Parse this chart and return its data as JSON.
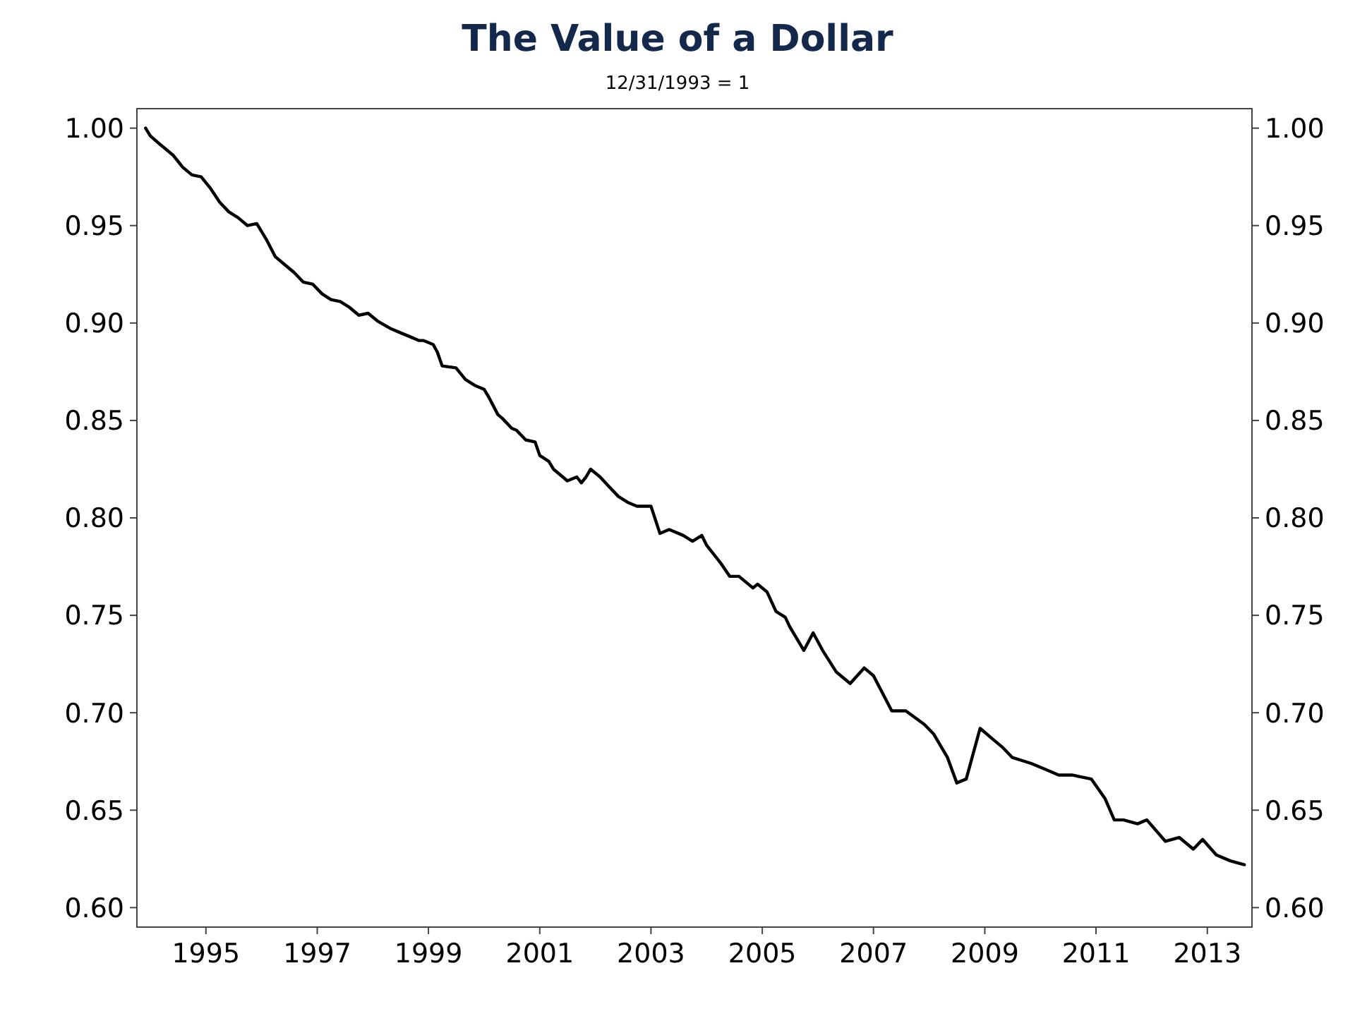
{
  "chart_data": {
    "type": "line",
    "title": "The Value of a Dollar",
    "subtitle": "12/31/1993 = 1",
    "x": [
      "1993-12",
      "1994-01",
      "1994-03",
      "1994-04",
      "1994-06",
      "1994-08",
      "1994-10",
      "1994-12",
      "1995-02",
      "1995-04",
      "1995-06",
      "1995-08",
      "1995-10",
      "1995-12",
      "1996-02",
      "1996-04",
      "1996-06",
      "1996-08",
      "1996-10",
      "1996-12",
      "1997-02",
      "1997-04",
      "1997-06",
      "1997-08",
      "1997-10",
      "1997-12",
      "1998-02",
      "1998-05",
      "1998-07",
      "1998-09",
      "1998-11",
      "1998-12",
      "1999-02",
      "1999-03",
      "1999-04",
      "1999-07",
      "1999-09",
      "1999-11",
      "2000-01",
      "2000-02",
      "2000-04",
      "2000-05",
      "2000-07",
      "2000-08",
      "2000-10",
      "2000-12",
      "2001-01",
      "2001-03",
      "2001-04",
      "2001-06",
      "2001-07",
      "2001-09",
      "2001-10",
      "2001-11",
      "2001-12",
      "2002-02",
      "2002-04",
      "2002-06",
      "2002-08",
      "2002-10",
      "2002-11",
      "2003-01",
      "2003-03",
      "2003-05",
      "2003-08",
      "2003-10",
      "2003-12",
      "2004-01",
      "2004-04",
      "2004-06",
      "2004-08",
      "2004-11",
      "2004-12",
      "2005-02",
      "2005-04",
      "2005-06",
      "2005-07",
      "2005-10",
      "2005-12",
      "2006-02",
      "2006-05",
      "2006-08",
      "2006-11",
      "2007-01",
      "2007-05",
      "2007-08",
      "2007-12",
      "2008-02",
      "2008-05",
      "2008-07",
      "2008-09",
      "2008-12",
      "2009-03",
      "2009-05",
      "2009-07",
      "2009-11",
      "2010-02",
      "2010-05",
      "2010-08",
      "2010-12",
      "2011-03",
      "2011-05",
      "2011-07",
      "2011-10",
      "2011-12",
      "2012-04",
      "2012-07",
      "2012-10",
      "2012-12",
      "2013-03",
      "2013-06",
      "2013-09"
    ],
    "series": [
      {
        "color": "#000000",
        "values": [
          1.0,
          0.996,
          0.992,
          0.99,
          0.986,
          0.98,
          0.976,
          0.975,
          0.969,
          0.962,
          0.957,
          0.954,
          0.95,
          0.951,
          0.943,
          0.934,
          0.93,
          0.926,
          0.921,
          0.92,
          0.915,
          0.912,
          0.911,
          0.908,
          0.904,
          0.905,
          0.901,
          0.897,
          0.895,
          0.893,
          0.891,
          0.891,
          0.889,
          0.885,
          0.878,
          0.877,
          0.871,
          0.868,
          0.866,
          0.862,
          0.853,
          0.851,
          0.846,
          0.845,
          0.84,
          0.839,
          0.832,
          0.829,
          0.825,
          0.821,
          0.819,
          0.821,
          0.818,
          0.821,
          0.825,
          0.821,
          0.816,
          0.811,
          0.808,
          0.806,
          0.806,
          0.806,
          0.792,
          0.794,
          0.791,
          0.788,
          0.791,
          0.786,
          0.777,
          0.77,
          0.77,
          0.764,
          0.766,
          0.762,
          0.752,
          0.749,
          0.744,
          0.732,
          0.741,
          0.732,
          0.721,
          0.715,
          0.723,
          0.719,
          0.701,
          0.701,
          0.694,
          0.689,
          0.677,
          0.664,
          0.666,
          0.692,
          0.686,
          0.682,
          0.677,
          0.674,
          0.671,
          0.668,
          0.668,
          0.666,
          0.656,
          0.645,
          0.645,
          0.643,
          0.645,
          0.634,
          0.636,
          0.63,
          0.635,
          0.627,
          0.624,
          0.622
        ]
      }
    ],
    "xlim": [
      "1993-10-05",
      "2013-10-21"
    ],
    "xticks": [
      {
        "value": "1995",
        "label": "1995"
      },
      {
        "value": "1997",
        "label": "1997"
      },
      {
        "value": "1999",
        "label": "1999"
      },
      {
        "value": "2001",
        "label": "2001"
      },
      {
        "value": "2003",
        "label": "2003"
      },
      {
        "value": "2005",
        "label": "2005"
      },
      {
        "value": "2007",
        "label": "2007"
      },
      {
        "value": "2009",
        "label": "2009"
      },
      {
        "value": "2011",
        "label": "2011"
      },
      {
        "value": "2013",
        "label": "2013"
      }
    ],
    "ylim": [
      0.59,
      1.01
    ],
    "yticks": [
      {
        "value": 0.6,
        "label": "0.60"
      },
      {
        "value": 0.65,
        "label": "0.65"
      },
      {
        "value": 0.7,
        "label": "0.70"
      },
      {
        "value": 0.75,
        "label": "0.75"
      },
      {
        "value": 0.8,
        "label": "0.80"
      },
      {
        "value": 0.85,
        "label": "0.85"
      },
      {
        "value": 0.9,
        "label": "0.90"
      },
      {
        "value": 0.95,
        "label": "0.95"
      },
      {
        "value": 1.0,
        "label": "1.00"
      }
    ],
    "y2lim": [
      0.59,
      1.01
    ],
    "y2ticks": [
      {
        "value": 0.6,
        "label": "0.60"
      },
      {
        "value": 0.65,
        "label": "0.65"
      },
      {
        "value": 0.7,
        "label": "0.70"
      },
      {
        "value": 0.75,
        "label": "0.75"
      },
      {
        "value": 0.8,
        "label": "0.80"
      },
      {
        "value": 0.85,
        "label": "0.85"
      },
      {
        "value": 0.9,
        "label": "0.90"
      },
      {
        "value": 0.95,
        "label": "0.95"
      },
      {
        "value": 1.0,
        "label": "1.00"
      }
    ],
    "grid": false,
    "line_style": "solid",
    "marker": "none"
  }
}
